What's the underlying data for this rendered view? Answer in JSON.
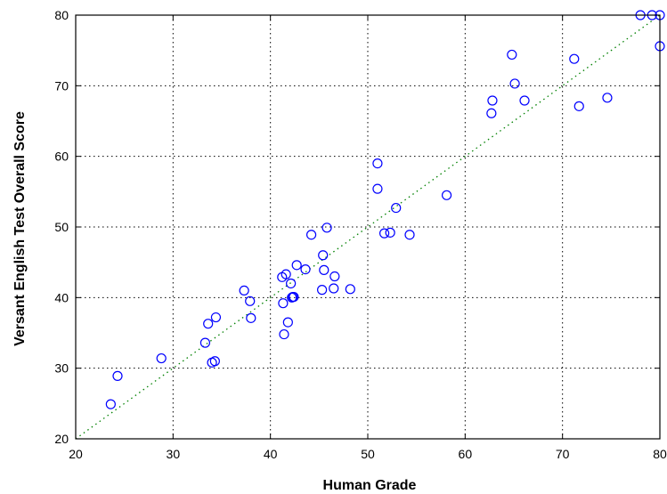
{
  "chart_data": {
    "type": "scatter",
    "title": "",
    "xlabel": "Human Grade",
    "ylabel": "Versant English Test Overall Score",
    "xlim": [
      20,
      80
    ],
    "ylim": [
      20,
      80
    ],
    "x_ticks": [
      20,
      30,
      40,
      50,
      60,
      70,
      80
    ],
    "y_ticks": [
      20,
      30,
      40,
      50,
      60,
      70,
      80
    ],
    "grid": true,
    "grid_style": "dotted",
    "marker": "circle-open",
    "marker_color": "#0000ff",
    "reference_line": {
      "style": "dotted",
      "color": "#008000",
      "from": [
        20,
        20
      ],
      "to": [
        80,
        80
      ]
    },
    "series": [
      {
        "points": [
          [
            23.6,
            24.9
          ],
          [
            24.3,
            28.9
          ],
          [
            28.8,
            31.4
          ],
          [
            33.3,
            33.6
          ],
          [
            33.6,
            36.3
          ],
          [
            34.0,
            30.8
          ],
          [
            34.3,
            31.0
          ],
          [
            34.4,
            37.2
          ],
          [
            37.3,
            41.0
          ],
          [
            37.9,
            39.5
          ],
          [
            38.0,
            37.1
          ],
          [
            41.2,
            42.9
          ],
          [
            41.3,
            39.2
          ],
          [
            41.4,
            34.8
          ],
          [
            41.6,
            43.3
          ],
          [
            41.8,
            36.5
          ],
          [
            42.1,
            42.0
          ],
          [
            42.2,
            40.0
          ],
          [
            42.3,
            40.1
          ],
          [
            42.4,
            40.1
          ],
          [
            42.7,
            44.6
          ],
          [
            43.6,
            44.0
          ],
          [
            44.2,
            48.9
          ],
          [
            45.3,
            41.1
          ],
          [
            45.4,
            46.0
          ],
          [
            45.5,
            43.9
          ],
          [
            45.8,
            49.9
          ],
          [
            46.5,
            41.3
          ],
          [
            46.6,
            43.0
          ],
          [
            48.2,
            41.2
          ],
          [
            51.0,
            55.4
          ],
          [
            51.0,
            59.0
          ],
          [
            51.7,
            49.1
          ],
          [
            52.3,
            49.2
          ],
          [
            52.9,
            52.7
          ],
          [
            54.3,
            48.9
          ],
          [
            58.1,
            54.5
          ],
          [
            62.7,
            66.1
          ],
          [
            62.8,
            67.9
          ],
          [
            64.8,
            74.4
          ],
          [
            65.1,
            70.3
          ],
          [
            66.1,
            67.9
          ],
          [
            71.2,
            73.8
          ],
          [
            71.7,
            67.1
          ],
          [
            74.6,
            68.3
          ],
          [
            78.0,
            80.0
          ],
          [
            79.2,
            80.0
          ],
          [
            80.0,
            80.0
          ],
          [
            80.0,
            75.6
          ]
        ]
      }
    ]
  }
}
